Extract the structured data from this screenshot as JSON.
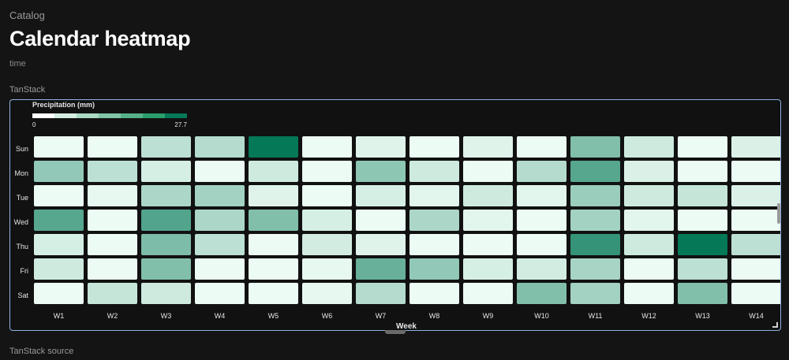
{
  "header": {
    "breadcrumb": "Catalog",
    "title": "Calendar heatmap",
    "subtitle": "time"
  },
  "sections": {
    "demo_label": "TanStack",
    "source_label": "TanStack source"
  },
  "chart_data": {
    "type": "heatmap",
    "legend": {
      "title": "Precipitation (mm)",
      "min_label": "0",
      "max_label": "27.7",
      "min": 0,
      "max": 27.7,
      "placement": "top-left"
    },
    "xlabel": "Week",
    "x": [
      "W1",
      "W2",
      "W3",
      "W4",
      "W5",
      "W6",
      "W7",
      "W8",
      "W9",
      "W10",
      "W11",
      "W12",
      "W13",
      "W14"
    ],
    "y": [
      "Sun",
      "Mon",
      "Tue",
      "Wed",
      "Thu",
      "Fri",
      "Sat"
    ],
    "values": [
      [
        0.5,
        0.5,
        6.0,
        7.0,
        27.7,
        0.5,
        2.0,
        0.5,
        2.0,
        0.5,
        13.0,
        4.0,
        0.5,
        2.5
      ],
      [
        11.0,
        6.0,
        3.0,
        0.5,
        4.0,
        0.5,
        11.5,
        4.0,
        0.5,
        7.0,
        18.0,
        2.5,
        0.5,
        0.5
      ],
      [
        0.5,
        1.0,
        8.0,
        9.0,
        2.0,
        0.5,
        3.0,
        1.5,
        4.0,
        1.5,
        10.0,
        4.0,
        5.0,
        2.5
      ],
      [
        18.0,
        0.5,
        18.5,
        8.0,
        13.0,
        3.0,
        0.5,
        8.0,
        1.5,
        0.5,
        9.0,
        1.5,
        0.5,
        0.5
      ],
      [
        3.0,
        0.5,
        13.5,
        6.0,
        0.5,
        3.5,
        2.0,
        0.5,
        0.5,
        0.5,
        22.0,
        4.0,
        27.7,
        6.0
      ],
      [
        4.0,
        0.5,
        13.0,
        0.5,
        0.5,
        1.0,
        16.0,
        11.0,
        3.0,
        3.5,
        8.5,
        0.5,
        6.0,
        0.5
      ],
      [
        0.5,
        5.0,
        4.0,
        0.5,
        0.5,
        1.0,
        7.0,
        0.5,
        0.5,
        13.0,
        9.0,
        0.5,
        13.0,
        0.5
      ]
    ],
    "colors": {
      "low": "#f0fdf6",
      "high": "#047857",
      "legend_steps": [
        "#ffffff",
        "#d5ede2",
        "#aad9c4",
        "#7fc5a7",
        "#55b189",
        "#2a9d6c",
        "#047857"
      ]
    },
    "grid": false
  }
}
